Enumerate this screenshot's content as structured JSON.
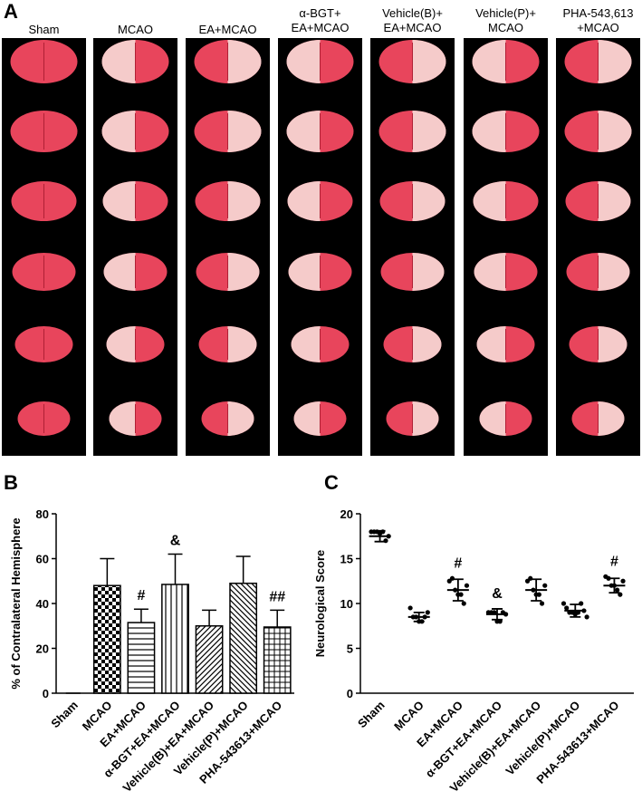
{
  "panel_a": {
    "label": "A",
    "columns": [
      [
        "Sham"
      ],
      [
        "MCAO"
      ],
      [
        "EA+MCAO"
      ],
      [
        "α-BGT+",
        "EA+MCAO"
      ],
      [
        "Vehicle(B)+",
        "EA+MCAO"
      ],
      [
        "Vehicle(P)+",
        "MCAO"
      ],
      [
        "PHA-543,613",
        "+MCAO"
      ]
    ]
  },
  "chart_data": [
    {
      "type": "bar",
      "panel": "B",
      "ylabel": "% of Contralateral Hemisphere",
      "categories": [
        "Sham",
        "MCAO",
        "EA+MCAO",
        "α-BGT+EA+MCAO",
        "Vehicle(B)+EA+MCAO",
        "Vehicle(P)+MCAO",
        "PHA-543613+MCAO"
      ],
      "values": [
        0,
        48,
        31.5,
        48.5,
        30,
        49,
        29.5
      ],
      "errors": [
        0,
        12,
        6,
        13.5,
        7,
        12,
        7.5
      ],
      "markers": [
        null,
        null,
        "#",
        "&",
        null,
        null,
        "##"
      ],
      "patterns": [
        "none",
        "checker",
        "horizontal",
        "vertical",
        "diag-up",
        "diag-down",
        "grid"
      ],
      "ylim": [
        0,
        80
      ],
      "yticks": [
        0,
        20,
        40,
        60,
        80
      ]
    },
    {
      "type": "strip",
      "panel": "C",
      "ylabel": "Neurological Score",
      "categories": [
        "Sham",
        "MCAO",
        "EA+MCAO",
        "α-BGT+EA+MCAO",
        "Vehicle(B)+EA+MCAO",
        "Vehicle(P)+MCAO",
        "PHA-543613+MCAO"
      ],
      "points": [
        [
          18,
          18,
          18,
          17.8,
          18,
          17,
          17.5
        ],
        [
          9.5,
          8.5,
          8.5,
          8,
          8,
          8.5,
          9
        ],
        [
          12.5,
          12.8,
          11.5,
          11,
          11,
          10,
          12
        ],
        [
          9,
          9,
          9,
          8,
          8,
          9,
          8.8
        ],
        [
          12.5,
          12.8,
          11.5,
          11,
          11,
          10,
          12
        ],
        [
          10,
          9.5,
          9,
          9,
          8.8,
          9,
          10,
          9.2,
          8.5
        ],
        [
          13,
          12.8,
          12,
          12,
          11.5,
          11,
          12.5
        ]
      ],
      "means": [
        17.5,
        8.5,
        11.5,
        8.8,
        11.5,
        9.2,
        12
      ],
      "errors": [
        0.6,
        0.5,
        1.2,
        0.6,
        1.2,
        0.7,
        0.8
      ],
      "markers": [
        null,
        null,
        "#",
        "&",
        null,
        null,
        "#"
      ],
      "ylim": [
        0,
        20
      ],
      "yticks": [
        0,
        5,
        10,
        15,
        20
      ]
    }
  ]
}
